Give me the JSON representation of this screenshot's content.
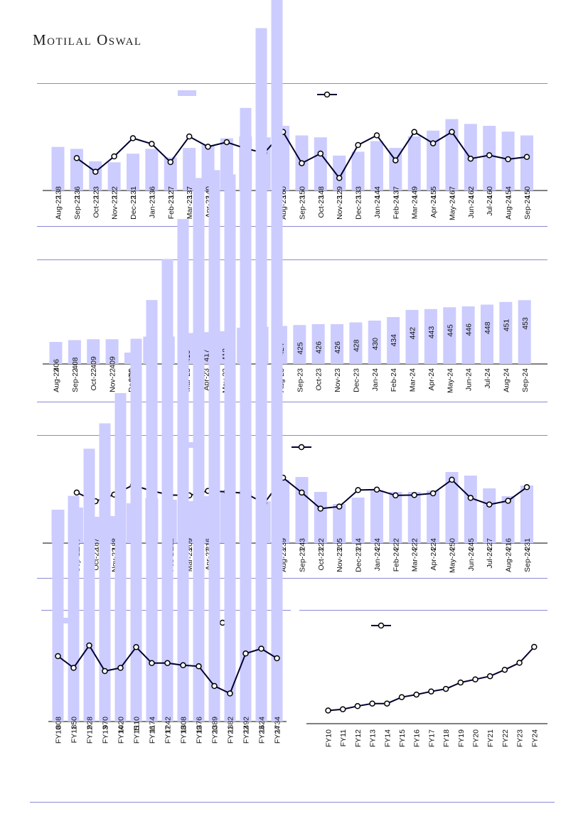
{
  "header": {
    "brand": "Motilal Oswal"
  },
  "colors": {
    "bar": "#ccccff",
    "line": "#000033",
    "rule": "#8a8ad6"
  },
  "chart_data": [
    {
      "type": "bar",
      "categories": [
        "Aug-22",
        "Sep-22",
        "Oct-22",
        "Nov-22",
        "Dec-22",
        "Jan-23",
        "Feb-23",
        "Mar-23",
        "Apr-23",
        "May-23",
        "Jun-23",
        "Jul-23",
        "Aug-23",
        "Sep-23",
        "Oct-23",
        "Nov-23",
        "Dec-23",
        "Jan-24",
        "Feb-24",
        "Mar-24",
        "Apr-24",
        "May-24",
        "Jun-24",
        "Jul-24",
        "Aug-24",
        "Sep-24"
      ],
      "series": [
        {
          "kind": "bar",
          "values": [
            138,
            136,
            123,
            122,
            131,
            136,
            127,
            137,
            140,
            147,
            149,
            148,
            160,
            150,
            148,
            129,
            133,
            144,
            137,
            149,
            155,
            167,
            162,
            160,
            154,
            150
          ]
        },
        {
          "kind": "line",
          "values": [
            null,
            0.32,
            0.08,
            0.35,
            0.67,
            0.57,
            0.25,
            0.7,
            0.52,
            0.6,
            0.49,
            0.41,
            0.78,
            0.23,
            0.4,
            -0.03,
            0.55,
            0.72,
            0.28,
            0.78,
            0.58,
            0.78,
            0.31,
            0.37,
            0.3,
            0.34
          ]
        }
      ],
      "legend": "top-center",
      "grid": false
    },
    {
      "type": "bar",
      "categories": [
        "Aug-22",
        "Sep-22",
        "Oct-22",
        "Nov-22",
        "Dec-22",
        "Jan-23",
        "Feb-23",
        "Mar-23",
        "Apr-23",
        "May-23",
        "Jun-23",
        "Jul-23",
        "Aug-23",
        "Sep-23",
        "Oct-23",
        "Nov-23",
        "Dec-23",
        "Jan-24",
        "Feb-24",
        "Mar-24",
        "Apr-24",
        "May-24",
        "Jun-24",
        "Jul-24",
        "Aug-24",
        "Sep-24"
      ],
      "series": [
        {
          "kind": "bar",
          "values": [
            406,
            408,
            409,
            409,
            394,
            412,
            412,
            416,
            417,
            418,
            422,
            423,
            424,
            425,
            426,
            426,
            428,
            430,
            434,
            442,
            443,
            445,
            446,
            448,
            451,
            453
          ]
        }
      ],
      "grid": false
    },
    {
      "type": "bar",
      "categories": [
        "Aug-22",
        "Sep-22",
        "Oct-22",
        "Nov-22",
        "Dec-22",
        "Jan-23",
        "Feb-23",
        "Mar-23",
        "Apr-23",
        "May-23",
        "Jun-23",
        "Jul-23",
        "Aug-23",
        "Sep-23",
        "Oct-23",
        "Nov-23",
        "Dec-23",
        "Jan-24",
        "Feb-24",
        "Mar-24",
        "Apr-24",
        "May-24",
        "Jun-24",
        "Jul-24",
        "Aug-24",
        "Sep-24"
      ],
      "series": [
        {
          "kind": "bar",
          "values": [
            197,
            200,
            187,
            188,
            206,
            213,
            211,
            209,
            216,
            222,
            224,
            209,
            239,
            243,
            222,
            205,
            214,
            224,
            222,
            222,
            224,
            250,
            245,
            227,
            216,
            231
          ]
        },
        {
          "kind": "line",
          "values": [
            null,
            0.64,
            0.43,
            0.59,
            0.82,
            0.68,
            0.58,
            0.57,
            0.68,
            0.66,
            0.62,
            0.38,
            1.0,
            0.64,
            0.25,
            0.3,
            0.7,
            0.71,
            0.57,
            0.58,
            0.62,
            0.95,
            0.51,
            0.35,
            0.44,
            0.77
          ]
        }
      ],
      "legend": "top-center",
      "grid": false
    },
    {
      "type": "bar",
      "categories": [
        "FY10",
        "FY11",
        "FY12",
        "FY13",
        "FY14",
        "FY15",
        "FY16",
        "FY17",
        "FY18",
        "FY19",
        "FY20",
        "FY21",
        "FY22",
        "FY23",
        "FY24"
      ],
      "series": [
        {
          "kind": "bar",
          "values": [
            808,
            850,
            928,
            970,
            1020,
            1110,
            1174,
            1242,
            1308,
            1376,
            1389,
            1382,
            1492,
            1624,
            1734
          ]
        },
        {
          "kind": "line",
          "values": [
            0.8,
            0.58,
            1.0,
            0.52,
            0.58,
            0.97,
            0.67,
            0.67,
            0.63,
            0.61,
            0.24,
            0.1,
            0.85,
            0.94,
            0.76
          ]
        }
      ],
      "legend": "top",
      "grid": false
    },
    {
      "type": "line",
      "categories": [
        "FY10",
        "FY11",
        "FY12",
        "FY13",
        "FY14",
        "FY15",
        "FY16",
        "FY17",
        "FY18",
        "FY19",
        "FY20",
        "FY21",
        "FY22",
        "FY23",
        "FY24"
      ],
      "series": [
        {
          "kind": "line",
          "values": [
            1.0,
            1.4,
            2.4,
            3.2,
            3.2,
            5.2,
            6.0,
            7.0,
            7.8,
            9.8,
            10.8,
            11.8,
            13.8,
            16.0,
            21.0
          ]
        }
      ],
      "legend": "top",
      "grid": false
    }
  ]
}
